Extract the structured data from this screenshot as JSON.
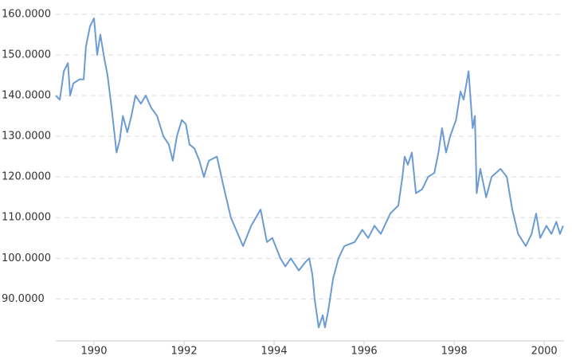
{
  "chart_data": {
    "type": "line",
    "x": [
      1989.15,
      1989.24,
      1989.33,
      1989.42,
      1989.47,
      1989.54,
      1989.68,
      1989.77,
      1989.82,
      1989.91,
      1990.0,
      1990.07,
      1990.14,
      1990.23,
      1990.3,
      1990.39,
      1990.5,
      1990.57,
      1990.64,
      1990.74,
      1990.83,
      1990.92,
      1991.04,
      1991.15,
      1991.27,
      1991.4,
      1991.54,
      1991.66,
      1991.75,
      1991.84,
      1991.95,
      1992.04,
      1992.12,
      1992.23,
      1992.34,
      1992.44,
      1992.55,
      1992.73,
      1992.87,
      1993.04,
      1993.31,
      1993.49,
      1993.7,
      1993.84,
      1993.96,
      1994.14,
      1994.25,
      1994.37,
      1994.55,
      1994.69,
      1994.78,
      1994.85,
      1994.9,
      1994.99,
      1995.08,
      1995.13,
      1995.2,
      1995.31,
      1995.43,
      1995.56,
      1995.79,
      1995.96,
      1996.09,
      1996.23,
      1996.37,
      1996.58,
      1996.76,
      1996.85,
      1996.9,
      1996.97,
      1997.06,
      1997.15,
      1997.29,
      1997.42,
      1997.56,
      1997.65,
      1997.73,
      1997.82,
      1997.91,
      1998.04,
      1998.14,
      1998.21,
      1998.32,
      1998.41,
      1998.46,
      1998.5,
      1998.58,
      1998.71,
      1998.83,
      1999.03,
      1999.17,
      1999.29,
      1999.42,
      1999.59,
      1999.72,
      1999.82,
      1999.91,
      2000.05,
      2000.16,
      2000.27,
      2000.35,
      2000.42
    ],
    "series": [
      {
        "color": "#6b9bd2",
        "values": [
          140,
          139,
          146,
          148,
          140,
          143,
          144,
          144,
          152,
          157,
          159,
          150,
          155,
          149,
          145,
          137,
          126,
          129,
          135,
          131,
          135,
          140,
          138,
          140,
          137,
          135,
          130,
          128,
          124,
          130,
          134,
          133,
          128,
          127,
          124,
          120,
          124,
          125,
          118,
          110,
          103,
          108,
          112,
          104,
          105,
          100,
          98,
          100,
          97,
          99,
          100,
          96,
          90,
          83,
          86,
          83,
          87,
          95,
          100,
          103,
          104,
          107,
          105,
          108,
          106,
          111,
          113,
          120,
          125,
          123,
          126,
          116,
          117,
          120,
          121,
          126,
          132,
          126,
          130,
          134,
          141,
          139,
          146,
          132,
          135,
          116,
          122,
          115,
          120,
          122,
          120,
          112,
          106,
          103,
          106,
          111,
          105,
          108,
          106,
          109,
          106,
          108
        ]
      }
    ],
    "xlim": [
      1989.15,
      2000.44
    ],
    "xticks": [
      1990,
      1992,
      1994,
      1996,
      1998,
      2000
    ],
    "ylim": [
      79.7,
      163.5
    ],
    "yticks": [
      {
        "value": 90,
        "label": "90.0000"
      },
      {
        "value": 100,
        "label": "100.0000"
      },
      {
        "value": 110,
        "label": "110.0000"
      },
      {
        "value": 120,
        "label": "120.0000"
      },
      {
        "value": 130,
        "label": "130.0000"
      },
      {
        "value": 140,
        "label": "140.0000"
      },
      {
        "value": 150,
        "label": "150.0000"
      },
      {
        "value": 160,
        "label": "160.0000"
      }
    ],
    "grid": true
  }
}
